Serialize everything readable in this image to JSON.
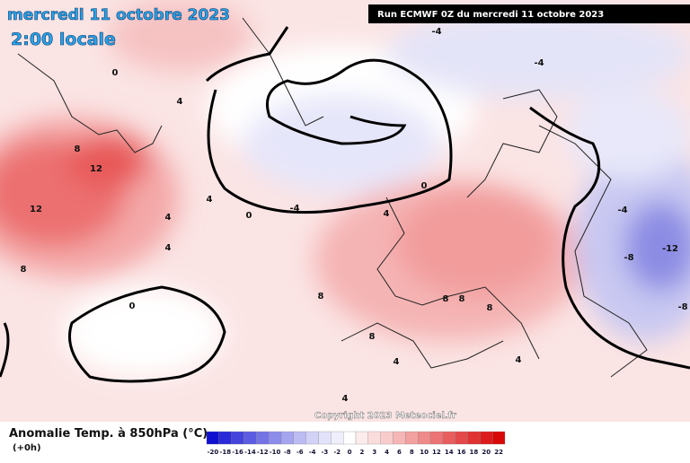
{
  "header": {
    "date": "mercredi 11 octobre 2023",
    "time": "2:00 locale",
    "run": "Run ECMWF 0Z du mercredi 11 octobre 2023"
  },
  "copyright": "Copyright 2023 Meteociel.fr",
  "legend": {
    "title": "Anomalie Temp. à 850hPa (°C)",
    "subtitle": "(+0h)",
    "scale": [
      -20,
      -18,
      -16,
      -14,
      -12,
      -10,
      -8,
      -6,
      -4,
      -3,
      -2,
      0,
      2,
      3,
      4,
      6,
      8,
      10,
      12,
      14,
      16,
      18,
      20,
      22
    ],
    "colors": [
      "#1010d0",
      "#2a2ad8",
      "#4444dd",
      "#5c5ce2",
      "#7474e6",
      "#8c8ceb",
      "#a4a4ef",
      "#bcbcf3",
      "#d2d2f7",
      "#e2e2fa",
      "#eeeefc",
      "#ffffff",
      "#fdecec",
      "#fbdcdc",
      "#f9cccc",
      "#f6b6b6",
      "#f3a0a0",
      "#ef8a8a",
      "#ec7474",
      "#e85e5e",
      "#e44848",
      "#e03232",
      "#dc1c1c",
      "#d80808"
    ]
  },
  "map": {
    "contour_labels": [
      0,
      0,
      0,
      0,
      8,
      12,
      12,
      8,
      4,
      4,
      4,
      4,
      -4,
      -4,
      -4,
      8,
      8,
      8,
      8,
      8,
      4,
      4,
      4,
      -8,
      -12,
      -8,
      -4,
      4
    ]
  }
}
